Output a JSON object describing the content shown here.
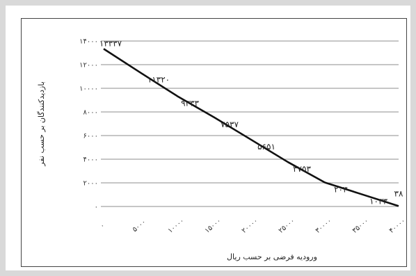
{
  "chart_data": {
    "type": "line",
    "x": [
      "۰",
      "۵۰۰۰",
      "۱۰۰۰۰",
      "۱۵۰۰۰",
      "۲۰۰۰۰",
      "۲۵۰۰۰",
      "۳۰۰۰۰",
      "۳۵۰۰۰",
      "۴۰۰۰۰"
    ],
    "series": [
      {
        "values": [
          13337,
          11320,
          9333,
          7537,
          5651,
          3753,
          2030,
          1033,
          38
        ],
        "labels": [
          "۱۳۳۳۷",
          "۱۱۳۲۰",
          "۹۳۳۳",
          "۷۵۳۷",
          "۵۶۵۱",
          "۳۷۵۳",
          "۲۰۳۰",
          "۱۰۳۳",
          "۳۸"
        ]
      }
    ],
    "yticks": [
      "۰",
      "۲۰۰۰",
      "۴۰۰۰",
      "۶۰۰۰",
      "۸۰۰۰",
      "۱۰۰۰۰",
      "۱۲۰۰۰",
      "۱۴۰۰۰"
    ],
    "ylim": [
      0,
      14000
    ],
    "xlabel": "ورودیه فرضی بر حسب ریال",
    "ylabel": "بازدیدکنندگان بر حسب نفر",
    "grid": "horizontal",
    "colors": {
      "line": "#111111",
      "grid": "#8c8c8c"
    }
  }
}
